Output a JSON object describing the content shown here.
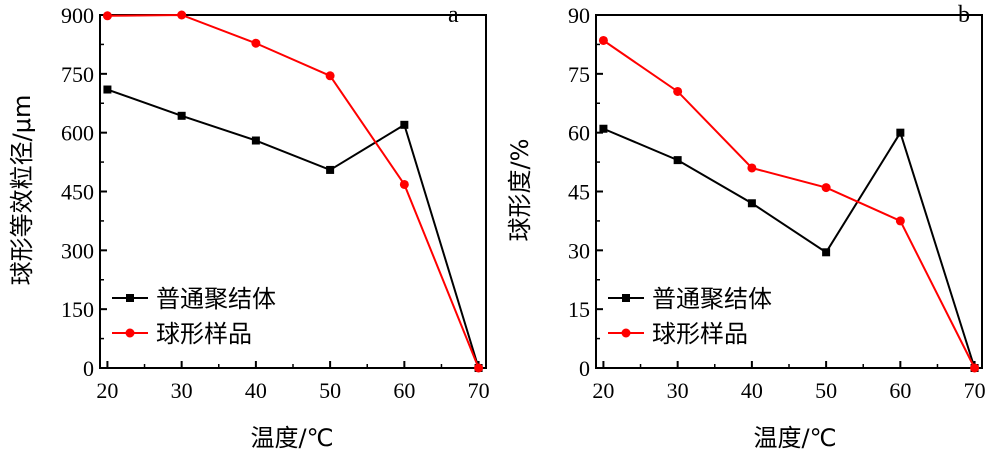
{
  "chart_data": [
    {
      "type": "line",
      "panel_label": "a",
      "xlabel": "温度/℃",
      "ylabel": "球形等效粒径/μm",
      "x": [
        20,
        30,
        40,
        50,
        60,
        70
      ],
      "x_ticks": [
        "20",
        "30",
        "40",
        "50",
        "60",
        "70"
      ],
      "y_ticks": [
        "0",
        "150",
        "300",
        "450",
        "600",
        "750",
        "900"
      ],
      "xlim": [
        19,
        71
      ],
      "ylim": [
        0,
        900
      ],
      "series": [
        {
          "name": "普通聚结体",
          "color": "#000000",
          "marker": "square",
          "values": [
            710,
            643,
            580,
            505,
            620,
            0
          ]
        },
        {
          "name": "球形样品",
          "color": "#ff0000",
          "marker": "circle",
          "values": [
            898,
            900,
            828,
            745,
            468,
            0
          ]
        }
      ],
      "legend": "bottom-left",
      "grid": false
    },
    {
      "type": "line",
      "panel_label": "b",
      "xlabel": "温度/℃",
      "ylabel": "球形度/%",
      "x": [
        20,
        30,
        40,
        50,
        60,
        70
      ],
      "x_ticks": [
        "20",
        "30",
        "40",
        "50",
        "60",
        "70"
      ],
      "y_ticks": [
        "0",
        "15",
        "30",
        "45",
        "60",
        "75",
        "90"
      ],
      "xlim": [
        19,
        71
      ],
      "ylim": [
        0,
        90
      ],
      "series": [
        {
          "name": "普通聚结体",
          "color": "#000000",
          "marker": "square",
          "values": [
            61,
            53,
            42,
            29.5,
            60,
            0
          ]
        },
        {
          "name": "球形样品",
          "color": "#ff0000",
          "marker": "circle",
          "values": [
            83.5,
            70.5,
            51,
            46,
            37.5,
            0
          ]
        }
      ],
      "legend": "bottom-left",
      "grid": false
    }
  ]
}
